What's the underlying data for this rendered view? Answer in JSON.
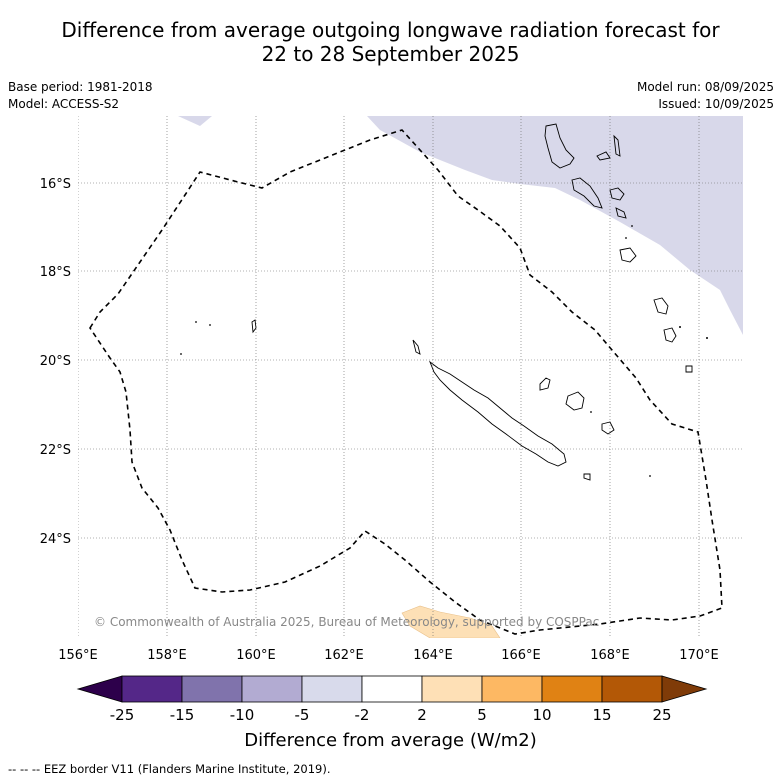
{
  "header": {
    "title_line1": "Difference from average outgoing longwave radiation forecast for",
    "title_line2": "22 to 28 September 2025",
    "base_period": "Base period: 1981-2018",
    "model": "Model: ACCESS-S2",
    "model_run": "Model run: 08/09/2025",
    "issued": "Issued: 10/09/2025"
  },
  "map": {
    "lat_labels": [
      "16°S",
      "18°S",
      "20°S",
      "22°S",
      "24°S"
    ],
    "lon_labels": [
      "156°E",
      "158°E",
      "160°E",
      "162°E",
      "164°E",
      "166°E",
      "168°E",
      "170°E"
    ],
    "copyright": "© Commonwealth of Australia 2025, Bureau of Meteorology, supported by COSPPac",
    "colors": {
      "neg_2_5": "#d8d8ea",
      "pos_2_5": "#fde0b6",
      "land_outline": "#000000",
      "eez": "#000000"
    }
  },
  "colorbar": {
    "ticks": [
      "-25",
      "-15",
      "-10",
      "-5",
      "-2",
      "2",
      "5",
      "10",
      "15",
      "25"
    ],
    "colors": [
      "#2d004b",
      "#542788",
      "#8073ac",
      "#b2abd2",
      "#d8daeb",
      "#ffffff",
      "#fee0b6",
      "#fdb863",
      "#e08214",
      "#b35806",
      "#7f3b08"
    ],
    "title": "Difference from average (W/m2)"
  },
  "footnote": "-- -- -- EEZ border V11 (Flanders Marine Institute, 2019)."
}
